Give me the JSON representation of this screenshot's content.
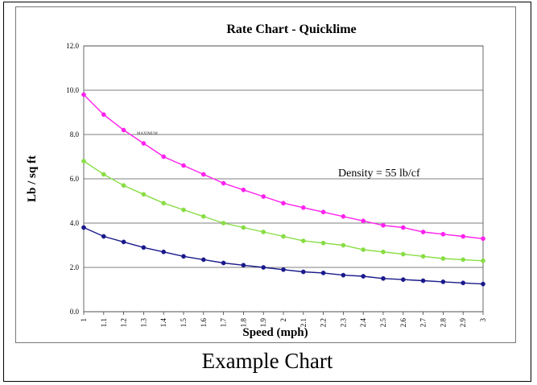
{
  "caption": "Example Chart",
  "chart_data": {
    "type": "line",
    "title": "Rate Chart - Quicklime",
    "xlabel": "Speed (mph)",
    "ylabel": "Lb / sq ft",
    "annotation": "Density = 55 lb/cf",
    "small_label": "MAXIMUM",
    "x": [
      1,
      1.1,
      1.2,
      1.3,
      1.4,
      1.5,
      1.6,
      1.7,
      1.8,
      1.9,
      2,
      2.1,
      2.2,
      2.3,
      2.4,
      2.5,
      2.6,
      2.7,
      2.8,
      2.9,
      3
    ],
    "x_tick_labels": [
      "1",
      "1.1",
      "1.2",
      "1.3",
      "1.4",
      "1.5",
      "1.6",
      "1.7",
      "1.8",
      "1.9",
      "2",
      "2.1",
      "2.2",
      "2.3",
      "2.4",
      "2.5",
      "2.6",
      "2.7",
      "2.8",
      "2.9",
      "3"
    ],
    "y_tick_labels": [
      "0.0",
      "2.0",
      "4.0",
      "6.0",
      "8.0",
      "10.0",
      "12.0"
    ],
    "ylim": [
      0,
      12
    ],
    "grid": true,
    "series": [
      {
        "color": "#ff22ee",
        "values": [
          9.8,
          8.9,
          8.2,
          7.6,
          7.0,
          6.6,
          6.2,
          5.8,
          5.5,
          5.2,
          4.9,
          4.7,
          4.5,
          4.3,
          4.1,
          3.9,
          3.8,
          3.6,
          3.5,
          3.4,
          3.3
        ]
      },
      {
        "color": "#88dd44",
        "values": [
          6.8,
          6.2,
          5.7,
          5.3,
          4.9,
          4.6,
          4.3,
          4.0,
          3.8,
          3.6,
          3.4,
          3.2,
          3.1,
          3.0,
          2.8,
          2.7,
          2.6,
          2.5,
          2.4,
          2.35,
          2.3
        ]
      },
      {
        "color": "#1a1a8c",
        "values": [
          3.8,
          3.4,
          3.15,
          2.9,
          2.7,
          2.5,
          2.35,
          2.2,
          2.1,
          2.0,
          1.9,
          1.8,
          1.75,
          1.65,
          1.6,
          1.5,
          1.45,
          1.4,
          1.35,
          1.3,
          1.25
        ]
      }
    ]
  }
}
